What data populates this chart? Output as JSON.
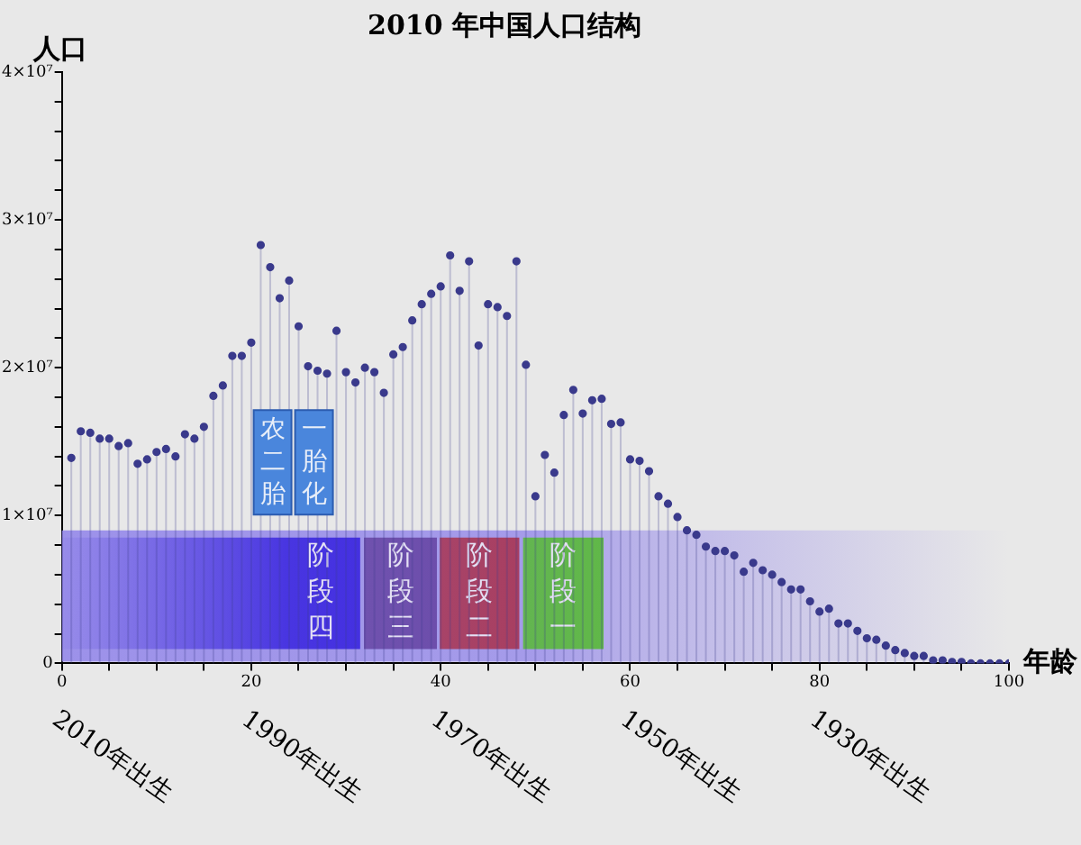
{
  "chart_data": {
    "type": "lollipop",
    "title": "2010 年中国人口结构",
    "xlabel": "年龄",
    "ylabel": "人口",
    "x": [
      1,
      2,
      3,
      4,
      5,
      6,
      7,
      8,
      9,
      10,
      11,
      12,
      13,
      14,
      15,
      16,
      17,
      18,
      19,
      20,
      21,
      22,
      23,
      24,
      25,
      26,
      27,
      28,
      29,
      30,
      31,
      32,
      33,
      34,
      35,
      36,
      37,
      38,
      39,
      40,
      41,
      42,
      43,
      44,
      45,
      46,
      47,
      48,
      49,
      50,
      51,
      52,
      53,
      54,
      55,
      56,
      57,
      58,
      59,
      60,
      61,
      62,
      63,
      64,
      65,
      66,
      67,
      68,
      69,
      70,
      71,
      72,
      73,
      74,
      75,
      76,
      77,
      78,
      79,
      80,
      81,
      82,
      83,
      84,
      85,
      86,
      87,
      88,
      89,
      90,
      91,
      92,
      93,
      94,
      95,
      96,
      97,
      98,
      99,
      100
    ],
    "series": [
      {
        "color": "#3a3a8c",
        "values": [
          13900000,
          15700000,
          15600000,
          15200000,
          15200000,
          14700000,
          14900000,
          13500000,
          13800000,
          14300000,
          14500000,
          14000000,
          15500000,
          15200000,
          16000000,
          18100000,
          18800000,
          20800000,
          20800000,
          21700000,
          28300000,
          26800000,
          24700000,
          25900000,
          22800000,
          20100000,
          19800000,
          19600000,
          22500000,
          19700000,
          19000000,
          20000000,
          19700000,
          18300000,
          20900000,
          21400000,
          23200000,
          24300000,
          25000000,
          25500000,
          27600000,
          25200000,
          27200000,
          21500000,
          24300000,
          24100000,
          23500000,
          27200000,
          20200000,
          11300000,
          14100000,
          12900000,
          16800000,
          18500000,
          16900000,
          17800000,
          17900000,
          16200000,
          16300000,
          13800000,
          13700000,
          13000000,
          11300000,
          10800000,
          9900000,
          9000000,
          8700000,
          7900000,
          7600000,
          7600000,
          7300000,
          6200000,
          6800000,
          6300000,
          6000000,
          5500000,
          5000000,
          5000000,
          4200000,
          3500000,
          3700000,
          2700000,
          2700000,
          2200000,
          1700000,
          1600000,
          1200000,
          900000,
          700000,
          500000,
          500000,
          200000,
          200000,
          100000,
          100000,
          0,
          0,
          0,
          0,
          0
        ]
      }
    ],
    "xlim": [
      0,
      100
    ],
    "xticks": [
      0,
      {
        "value": 5,
        "label": null
      },
      {
        "value": 10,
        "label": null
      },
      {
        "value": 15,
        "label": null
      },
      20,
      {
        "value": 25,
        "label": null
      },
      {
        "value": 30,
        "label": null
      },
      {
        "value": 35,
        "label": null
      },
      40,
      {
        "value": 45,
        "label": null
      },
      {
        "value": 50,
        "label": null
      },
      {
        "value": 55,
        "label": null
      },
      60,
      {
        "value": 65,
        "label": null
      },
      {
        "value": 70,
        "label": null
      },
      {
        "value": 75,
        "label": null
      },
      80,
      {
        "value": 85,
        "label": null
      },
      {
        "value": 90,
        "label": null
      },
      {
        "value": 95,
        "label": null
      },
      100
    ],
    "x2lim": [
      2010,
      1910
    ],
    "x2ticks": [
      {
        "value": 2010,
        "label": "2010年出生"
      },
      {
        "value": 1990,
        "label": "1990年出生"
      },
      {
        "value": 1970,
        "label": "1970年出生"
      },
      {
        "value": 1950,
        "label": "1950年出生"
      },
      {
        "value": 1930,
        "label": "1930年出生"
      }
    ],
    "ylim": [
      0,
      40000000
    ],
    "yticks": [
      0,
      {
        "value": 2000000,
        "label": null
      },
      {
        "value": 4000000,
        "label": null
      },
      {
        "value": 6000000,
        "label": null
      },
      {
        "value": 8000000,
        "label": null
      },
      {
        "value": 10000000,
        "label": "1×10⁷"
      },
      {
        "value": 12000000,
        "label": null
      },
      {
        "value": 14000000,
        "label": null
      },
      {
        "value": 16000000,
        "label": null
      },
      {
        "value": 18000000,
        "label": null
      },
      {
        "value": 20000000,
        "label": "2×10⁷"
      },
      {
        "value": 22000000,
        "label": null
      },
      {
        "value": 24000000,
        "label": null
      },
      {
        "value": 26000000,
        "label": null
      },
      {
        "value": 28000000,
        "label": null
      },
      {
        "value": 30000000,
        "label": "3×10⁷"
      },
      {
        "value": 32000000,
        "label": null
      },
      {
        "value": 34000000,
        "label": null
      },
      {
        "value": 36000000,
        "label": null
      },
      {
        "value": 38000000,
        "label": null
      },
      {
        "value": 40000000,
        "label": "4×10⁷"
      }
    ],
    "marker": "circle",
    "grid": false,
    "legend": false,
    "bands": [
      {
        "axis": "x",
        "from": 0,
        "to": 100,
        "color": "#8f82ea"
      },
      {
        "axis": "x",
        "from": 0,
        "to": 31.5,
        "label": "阶段四",
        "color": "#3f2be0"
      },
      {
        "axis": "x",
        "from": 31.9,
        "to": 39.6,
        "label": "阶段三",
        "color": "#6a4aa8"
      },
      {
        "axis": "x",
        "from": 39.9,
        "to": 48.3,
        "label": "阶段二",
        "color": "#a83a5a"
      },
      {
        "axis": "x",
        "from": 48.7,
        "to": 57.2,
        "label": "阶段一",
        "color": "#5cb840"
      }
    ],
    "annotations": [
      "农二胎",
      "一胎化"
    ]
  }
}
